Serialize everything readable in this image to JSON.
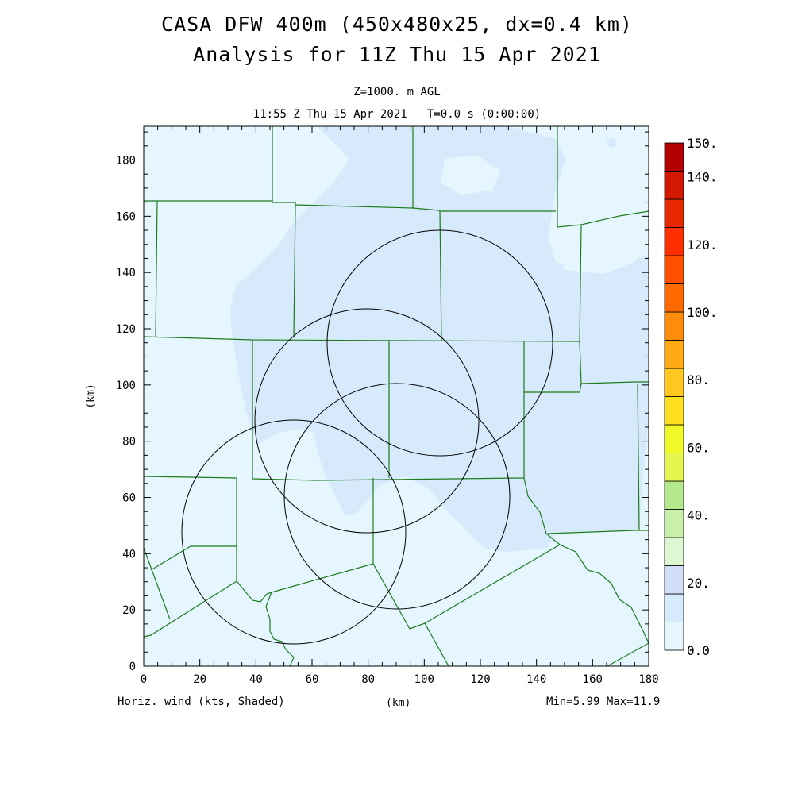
{
  "header": {
    "title_line1": "CASA DFW 400m (450x480x25, dx=0.4 km)",
    "title_line2": "Analysis for 11Z Thu 15 Apr 2021",
    "level_label": "Z=1000. m AGL",
    "time_label": "11:55 Z Thu 15 Apr 2021   T=0.0 s (0:00:00)"
  },
  "axes": {
    "x_ticks": [
      "0",
      "20",
      "40",
      "60",
      "80",
      "100",
      "120",
      "140",
      "160",
      "180"
    ],
    "y_ticks": [
      "0",
      "20",
      "40",
      "60",
      "80",
      "100",
      "120",
      "140",
      "160",
      "180"
    ],
    "x_label": "(km)",
    "y_label": "(km)",
    "x_range": [
      0,
      180
    ],
    "y_range": [
      0,
      192
    ]
  },
  "footer": {
    "field_label": "Horiz. wind (kts, Shaded)",
    "min_max": "Min=5.99 Max=11.9"
  },
  "colorbar": {
    "labels": [
      "0.0",
      "20.",
      "40.",
      "60.",
      "80.",
      "100.",
      "120.",
      "140.",
      "150."
    ],
    "colors": [
      "#e6f6ff",
      "#d6ebfc",
      "#d2ddf7",
      "#dcf7d2",
      "#c8f0a8",
      "#b4e88c",
      "#e4f550",
      "#f0fa28",
      "#ffe020",
      "#ffc820",
      "#ffaa14",
      "#ff8c0a",
      "#ff6a00",
      "#ff5000",
      "#ff3000",
      "#e82800",
      "#d21800",
      "#b40000"
    ]
  },
  "map": {
    "background_color": "#e6f6ff",
    "shade_color": "#d6eafb",
    "county_line_color": "#1e7a1e",
    "radar_circle_color": "#000000"
  }
}
